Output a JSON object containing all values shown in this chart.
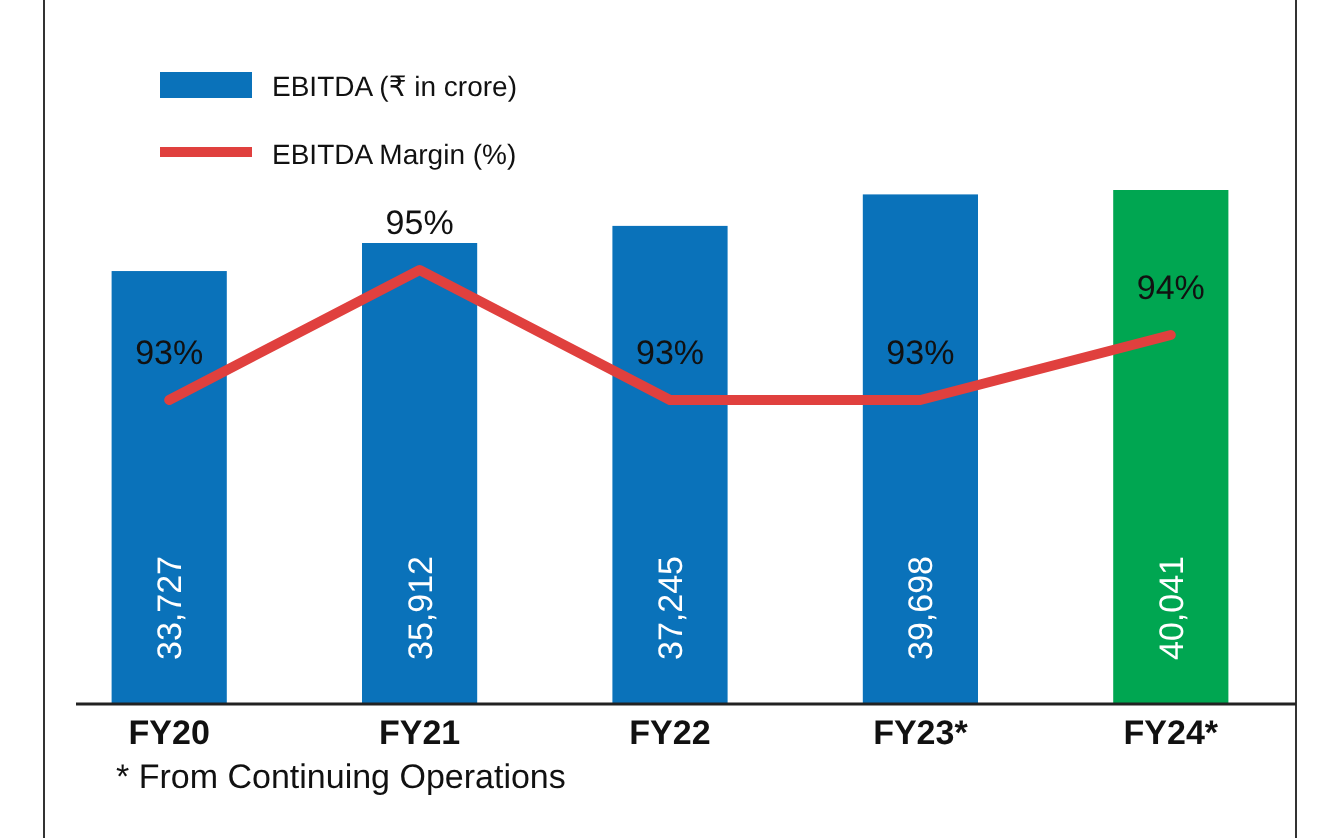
{
  "chart_data": {
    "type": "bar",
    "categories": [
      "FY20",
      "FY21",
      "FY22",
      "FY23*",
      "FY24*"
    ],
    "tick_labels": "x",
    "legend": "top left",
    "series": [
      {
        "name": "EBITDA (₹ in crore)",
        "colors": [
          "#0a72ba",
          "#0a72ba",
          "#0a72ba",
          "#0a72ba",
          "#00a651"
        ],
        "values": [
          33727,
          35912,
          37245,
          39698,
          40041
        ],
        "value_labels": [
          "33,727",
          "35,912",
          "37,245",
          "39,698",
          "40,041"
        ]
      },
      {
        "type": "line",
        "name": "EBITDA Margin (%)",
        "color": "#e0403e",
        "axis": "y2",
        "values": [
          93,
          95,
          93,
          93,
          94
        ],
        "value_labels": [
          "93%",
          "95%",
          "93%",
          "93%",
          "94%"
        ]
      }
    ],
    "annotations": [
      "* From Continuing Operations"
    ]
  }
}
